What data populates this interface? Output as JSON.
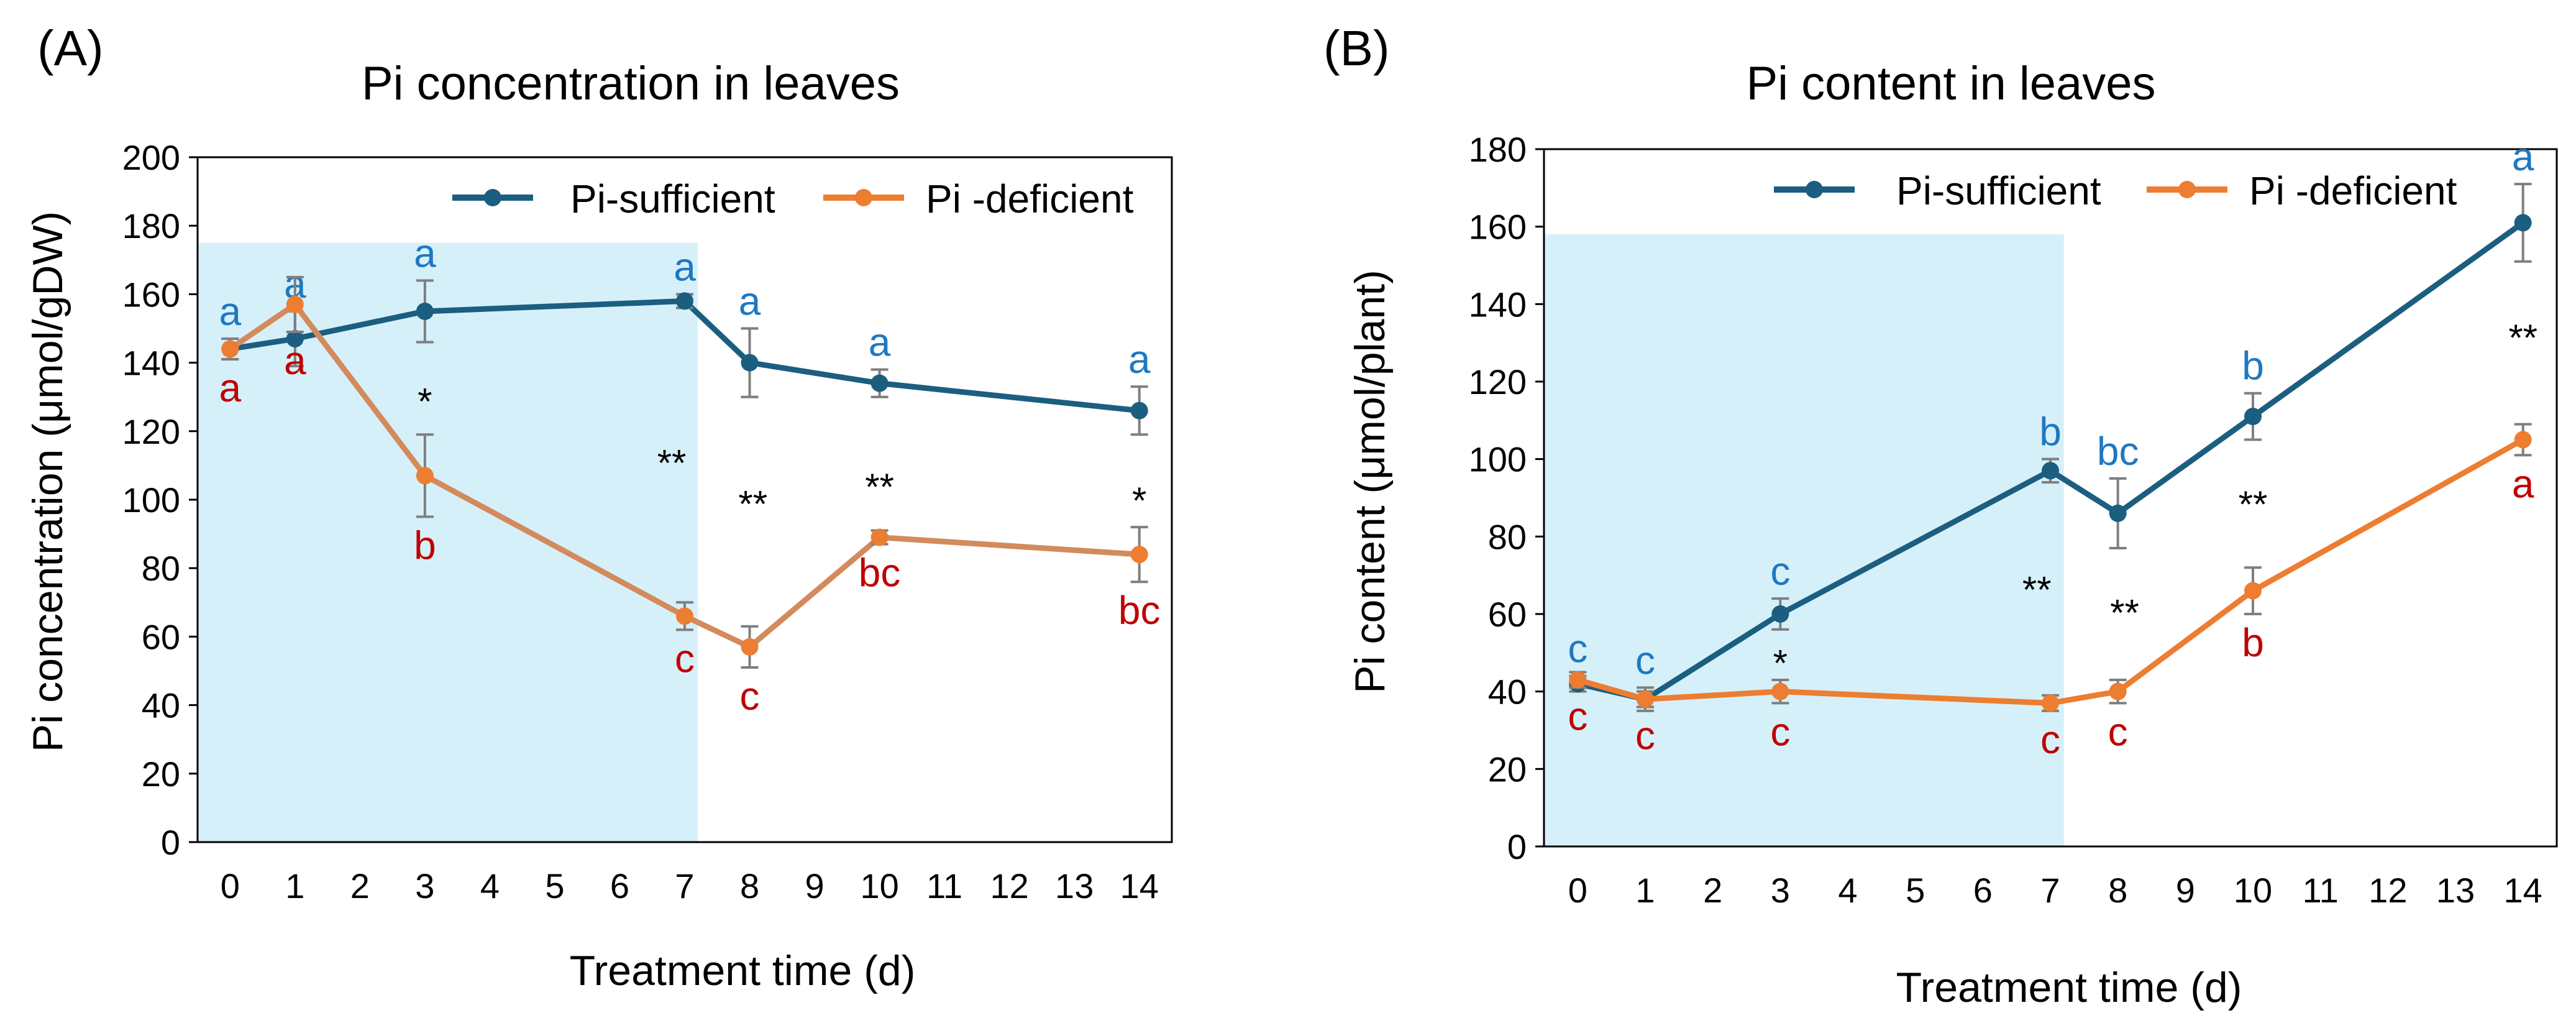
{
  "colors": {
    "sufficient": "#1b5e80",
    "deficient": "#ed7d31",
    "deficientLineA": "#d38a5c",
    "shade": "#d6f0f9",
    "letterBlue": "#1f78c1",
    "letterRed": "#c00000",
    "errorBar": "#7f7f7f",
    "axis": "#000000"
  },
  "chart_data": [
    {
      "type": "line",
      "panel_label": "(A)",
      "title": "Pi concentration in leaves",
      "xlabel": "Treatment time (d)",
      "ylabel": "Pi concentration (μmol/gDW)",
      "categories": [
        "0",
        "1",
        "2",
        "3",
        "4",
        "5",
        "6",
        "7",
        "8",
        "9",
        "10",
        "11",
        "12",
        "13",
        "14"
      ],
      "ylim": [
        0,
        200
      ],
      "yticks": [
        0,
        20,
        40,
        60,
        80,
        100,
        120,
        140,
        160,
        180,
        200
      ],
      "shade_x_end": 7.2,
      "shade_y_top": 175,
      "legend_position": "top-right",
      "series": [
        {
          "name": "Pi-sufficient",
          "key": "sufficient",
          "x": [
            0,
            1,
            3,
            7,
            8,
            10,
            14
          ],
          "values": [
            144,
            147,
            155,
            158,
            140,
            134,
            126
          ],
          "errors": [
            3,
            8,
            9,
            2,
            10,
            4,
            7
          ],
          "letters": [
            "a",
            "a",
            "a",
            "a",
            "a",
            "a",
            "a"
          ],
          "letter_positions": [
            "above",
            "above",
            "above",
            "above",
            "above",
            "above",
            "above"
          ]
        },
        {
          "name": "Pi -deficient",
          "key": "deficient",
          "x": [
            0,
            1,
            3,
            7,
            8,
            10,
            14
          ],
          "values": [
            144,
            157,
            107,
            66,
            57,
            89,
            84
          ],
          "errors": [
            3,
            8,
            12,
            4,
            6,
            2,
            8
          ],
          "letters": [
            "a",
            "a",
            "b",
            "c",
            "c",
            "bc",
            "bc"
          ],
          "letter_positions": [
            "below",
            "below",
            "below",
            "below",
            "below",
            "below",
            "below"
          ]
        }
      ],
      "significance": [
        {
          "x": 3,
          "y": 125,
          "text": "*"
        },
        {
          "x": 6.8,
          "y": 107,
          "text": "**"
        },
        {
          "x": 8.05,
          "y": 95,
          "text": "**"
        },
        {
          "x": 10,
          "y": 100,
          "text": "**"
        },
        {
          "x": 14,
          "y": 96,
          "text": "*"
        }
      ]
    },
    {
      "type": "line",
      "panel_label": "(B)",
      "title": "Pi content in leaves",
      "xlabel": "Treatment  time (d)",
      "ylabel": "Pi content (μmol/plant)",
      "categories": [
        "0",
        "1",
        "2",
        "3",
        "4",
        "5",
        "6",
        "7",
        "8",
        "9",
        "10",
        "11",
        "12",
        "13",
        "14"
      ],
      "ylim": [
        0,
        180
      ],
      "yticks": [
        0,
        20,
        40,
        60,
        80,
        100,
        120,
        140,
        160,
        180
      ],
      "shade_x_end": 7.2,
      "shade_y_top": 158,
      "legend_position": "top-right",
      "series": [
        {
          "name": "Pi-sufficient",
          "key": "sufficient",
          "x": [
            0,
            1,
            3,
            7,
            8,
            10,
            14
          ],
          "values": [
            42,
            38,
            60,
            97,
            86,
            111,
            161
          ],
          "errors": [
            2,
            3,
            4,
            3,
            9,
            6,
            10
          ],
          "letters": [
            "c",
            "c",
            "c",
            "b",
            "bc",
            "b",
            "a"
          ],
          "letter_positions": [
            "above",
            "above",
            "above",
            "above",
            "above",
            "above",
            "above"
          ]
        },
        {
          "name": "Pi -deficient",
          "key": "deficient",
          "x": [
            0,
            1,
            3,
            7,
            8,
            10,
            14
          ],
          "values": [
            43,
            38,
            40,
            37,
            40,
            66,
            105
          ],
          "errors": [
            2,
            2,
            3,
            2,
            3,
            6,
            4
          ],
          "letters": [
            "c",
            "c",
            "c",
            "c",
            "c",
            "b",
            "a"
          ],
          "letter_positions": [
            "below",
            "below",
            "below",
            "below",
            "below",
            "below",
            "below"
          ]
        }
      ],
      "significance": [
        {
          "x": 3,
          "y": 44,
          "text": "*"
        },
        {
          "x": 6.8,
          "y": 63,
          "text": "**"
        },
        {
          "x": 8.1,
          "y": 57,
          "text": "**"
        },
        {
          "x": 10,
          "y": 85,
          "text": "**"
        },
        {
          "x": 14,
          "y": 128,
          "text": "**"
        }
      ]
    }
  ]
}
